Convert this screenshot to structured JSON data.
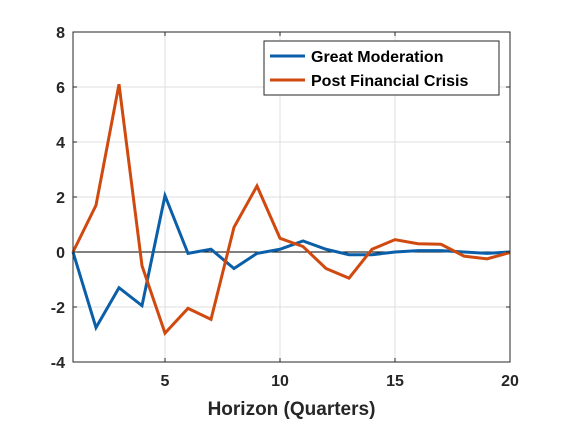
{
  "chart_data": {
    "type": "line",
    "title": "",
    "xlabel": "Horizon (Quarters)",
    "ylabel": "",
    "xlim": [
      1,
      20
    ],
    "ylim": [
      -4,
      8
    ],
    "x_ticks": [
      5,
      10,
      15,
      20
    ],
    "y_ticks": [
      -4,
      -2,
      0,
      2,
      4,
      6,
      8
    ],
    "grid": true,
    "zero_line": true,
    "legend_position": "top-right",
    "x": [
      1,
      2,
      3,
      4,
      5,
      6,
      7,
      8,
      9,
      10,
      11,
      12,
      13,
      14,
      15,
      16,
      17,
      18,
      19,
      20
    ],
    "series": [
      {
        "name": "Great Moderation",
        "color": "#0b5fa8",
        "values": [
          0.0,
          -2.75,
          -1.3,
          -1.95,
          2.05,
          -0.05,
          0.1,
          -0.6,
          -0.05,
          0.1,
          0.4,
          0.1,
          -0.1,
          -0.1,
          0.0,
          0.05,
          0.05,
          0.0,
          -0.05,
          0.0
        ]
      },
      {
        "name": "Post Financial Crisis",
        "color": "#d04a10",
        "values": [
          0.0,
          1.7,
          6.1,
          -0.5,
          -2.95,
          -2.05,
          -2.45,
          0.9,
          2.4,
          0.5,
          0.2,
          -0.6,
          -0.95,
          0.1,
          0.45,
          0.3,
          0.28,
          -0.15,
          -0.25,
          -0.02
        ]
      }
    ]
  }
}
